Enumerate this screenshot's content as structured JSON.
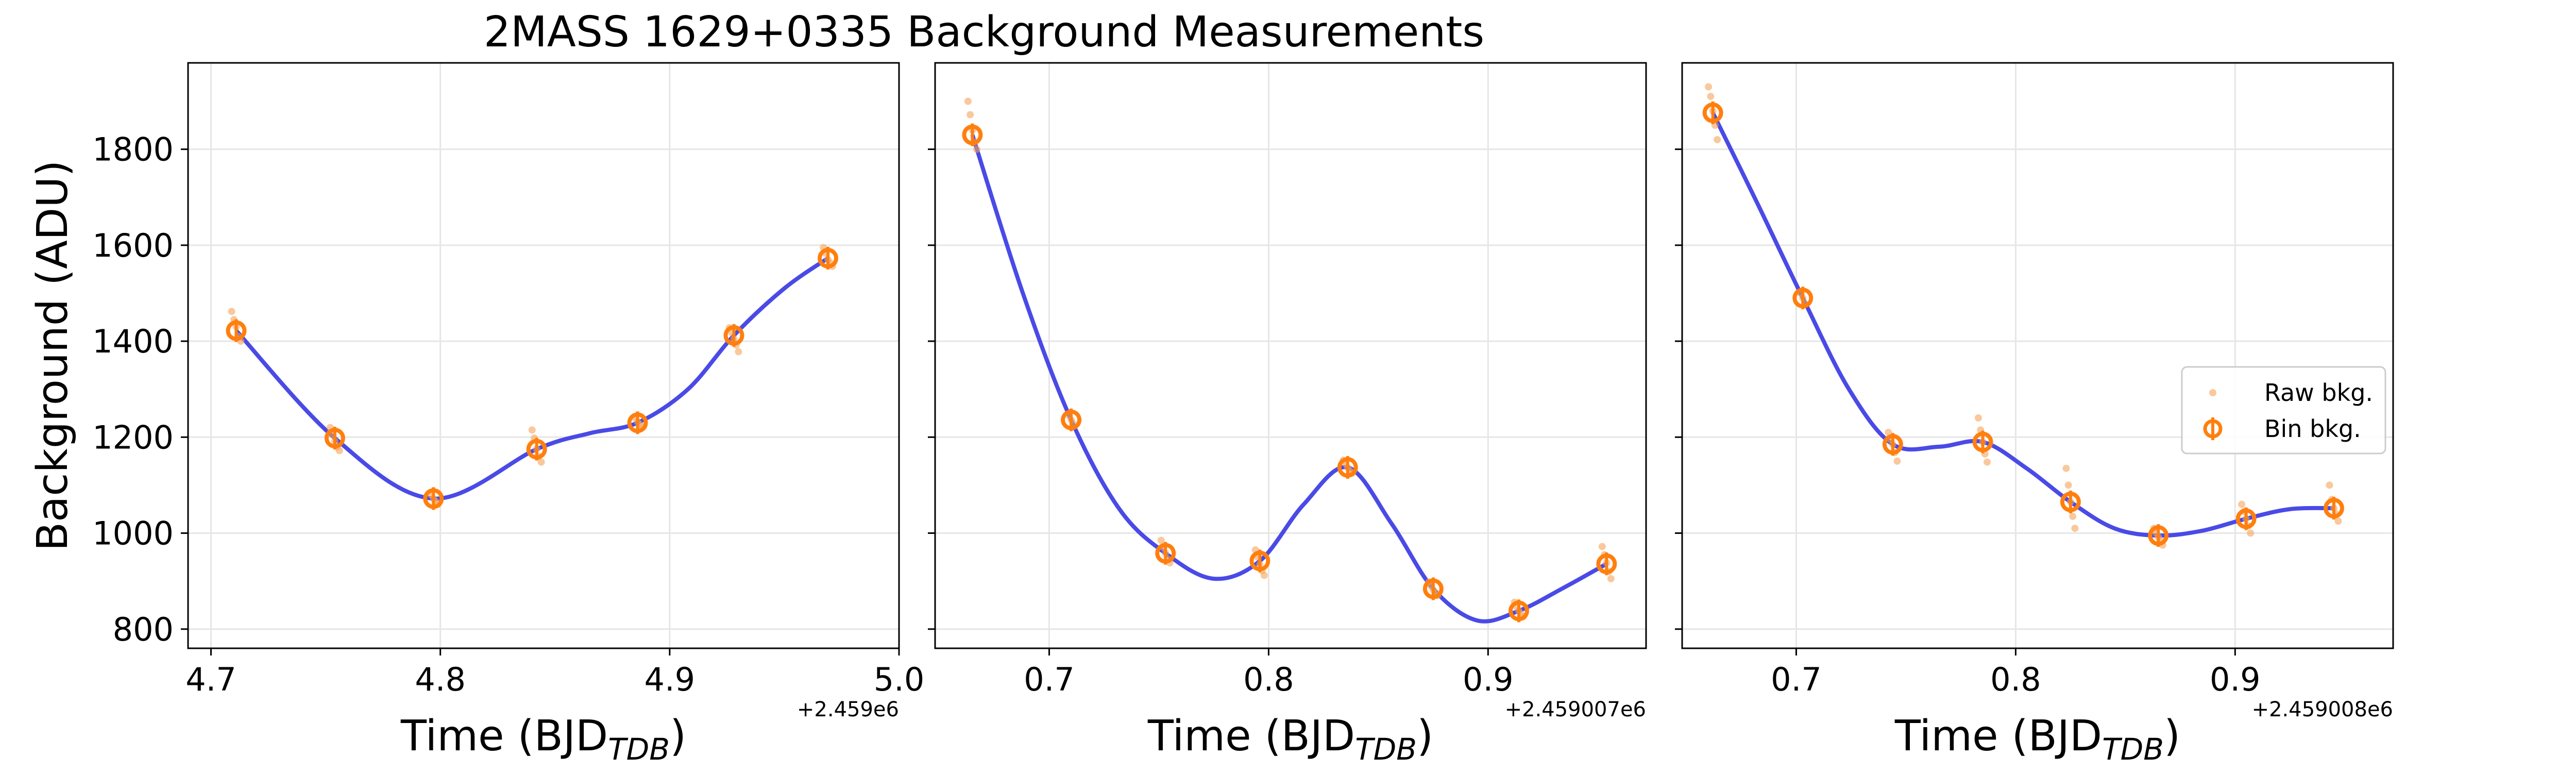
{
  "title": "2MASS 1629+0335 Background Measurements",
  "legend": {
    "placement": "center-right",
    "entries": [
      {
        "label": "Raw bkg.",
        "marker": "raw-dot"
      },
      {
        "label": "Bin bkg.",
        "marker": "bin-errorbar-circle"
      }
    ]
  },
  "colors": {
    "raw": "#f5a45a",
    "bin": "#ff7f0e",
    "fit": "#4040e6",
    "grid": "#e6e6e6",
    "axis": "#000000"
  },
  "chart_data": [
    {
      "type": "scatter",
      "xlabel": "Time (BJD",
      "xlabel_sub": "TDB",
      "xlabel_end": ")",
      "ylabel": "Background (ADU)",
      "x_offset_label": "+2.459e6",
      "xlim": [
        4.69,
        5.0
      ],
      "ylim": [
        760,
        1980
      ],
      "xticks": [
        4.7,
        4.8,
        4.9,
        5.0
      ],
      "xtick_labels": [
        "4.7",
        "4.8",
        "4.9",
        "5.0"
      ],
      "yticks": [
        800,
        1000,
        1200,
        1400,
        1600,
        1800
      ],
      "ytick_labels": [
        "800",
        "1000",
        "1200",
        "1400",
        "1600",
        "1800"
      ],
      "grid": true,
      "binned": {
        "x": [
          4.711,
          4.754,
          4.797,
          4.842,
          4.886,
          4.928,
          4.969
        ],
        "y": [
          1422,
          1198,
          1072,
          1175,
          1230,
          1412,
          1573
        ]
      },
      "raw": {
        "x": [
          4.709,
          4.71,
          4.711,
          4.712,
          4.713,
          4.752,
          4.753,
          4.754,
          4.755,
          4.756,
          4.796,
          4.797,
          4.798,
          4.799,
          4.84,
          4.841,
          4.842,
          4.843,
          4.844,
          4.885,
          4.886,
          4.887,
          4.888,
          4.926,
          4.927,
          4.928,
          4.929,
          4.93,
          4.967,
          4.968,
          4.969,
          4.97,
          4.971
        ],
        "y": [
          1462,
          1445,
          1430,
          1410,
          1400,
          1220,
          1205,
          1192,
          1180,
          1172,
          1080,
          1072,
          1066,
          1060,
          1215,
          1198,
          1175,
          1160,
          1148,
          1240,
          1232,
          1226,
          1222,
          1428,
          1418,
          1405,
          1392,
          1378,
          1595,
          1583,
          1570,
          1563,
          1556
        ]
      },
      "fit": {
        "x": [
          4.711,
          4.754,
          4.797,
          4.842,
          4.865,
          4.886,
          4.908,
          4.928,
          4.95,
          4.969
        ],
        "y": [
          1422,
          1198,
          1072,
          1175,
          1208,
          1230,
          1300,
          1412,
          1510,
          1573
        ]
      }
    },
    {
      "type": "scatter",
      "xlabel": "Time (BJD",
      "xlabel_sub": "TDB",
      "xlabel_end": ")",
      "ylabel": "",
      "x_offset_label": "+2.459007e6",
      "xlim": [
        0.648,
        0.972
      ],
      "ylim": [
        760,
        1980
      ],
      "xticks": [
        0.7,
        0.8,
        0.9
      ],
      "xtick_labels": [
        "0.7",
        "0.8",
        "0.9"
      ],
      "yticks": [
        800,
        1000,
        1200,
        1400,
        1600,
        1800
      ],
      "ytick_labels": [],
      "grid": true,
      "binned": {
        "x": [
          0.665,
          0.71,
          0.753,
          0.796,
          0.836,
          0.875,
          0.914,
          0.954
        ],
        "y": [
          1830,
          1236,
          958,
          942,
          1137,
          884,
          838,
          936
        ]
      },
      "raw": {
        "x": [
          0.663,
          0.664,
          0.665,
          0.666,
          0.667,
          0.709,
          0.71,
          0.711,
          0.751,
          0.752,
          0.753,
          0.754,
          0.755,
          0.794,
          0.795,
          0.796,
          0.797,
          0.798,
          0.834,
          0.835,
          0.836,
          0.837,
          0.838,
          0.873,
          0.874,
          0.875,
          0.876,
          0.877,
          0.912,
          0.913,
          0.914,
          0.915,
          0.916,
          0.952,
          0.953,
          0.954,
          0.955,
          0.956
        ],
        "y": [
          1900,
          1872,
          1840,
          1815,
          1800,
          1245,
          1236,
          1228,
          985,
          970,
          958,
          946,
          938,
          965,
          950,
          935,
          922,
          912,
          1152,
          1145,
          1137,
          1130,
          1125,
          898,
          890,
          882,
          876,
          870,
          856,
          847,
          838,
          832,
          826,
          972,
          955,
          938,
          920,
          905
        ]
      },
      "fit": {
        "x": [
          0.665,
          0.688,
          0.71,
          0.732,
          0.753,
          0.775,
          0.796,
          0.816,
          0.836,
          0.856,
          0.875,
          0.895,
          0.914,
          0.934,
          0.954
        ],
        "y": [
          1830,
          1500,
          1236,
          1050,
          958,
          905,
          942,
          1060,
          1137,
          1020,
          884,
          818,
          838,
          885,
          936
        ]
      }
    },
    {
      "type": "scatter",
      "xlabel": "Time (BJD",
      "xlabel_sub": "TDB",
      "xlabel_end": ")",
      "ylabel": "",
      "x_offset_label": "+2.459008e6",
      "xlim": [
        0.648,
        0.972
      ],
      "ylim": [
        760,
        1980
      ],
      "xticks": [
        0.7,
        0.8,
        0.9
      ],
      "xtick_labels": [
        "0.7",
        "0.8",
        "0.9"
      ],
      "yticks": [
        800,
        1000,
        1200,
        1400,
        1600,
        1800
      ],
      "ytick_labels": [],
      "grid": true,
      "binned": {
        "x": [
          0.662,
          0.703,
          0.744,
          0.785,
          0.825,
          0.865,
          0.905,
          0.945
        ],
        "y": [
          1876,
          1490,
          1185,
          1190,
          1065,
          995,
          1030,
          1052
        ]
      },
      "raw": {
        "x": [
          0.66,
          0.661,
          0.662,
          0.663,
          0.664,
          0.702,
          0.703,
          0.704,
          0.742,
          0.743,
          0.744,
          0.745,
          0.746,
          0.783,
          0.784,
          0.785,
          0.786,
          0.787,
          0.823,
          0.824,
          0.825,
          0.826,
          0.827,
          0.863,
          0.864,
          0.865,
          0.866,
          0.867,
          0.903,
          0.904,
          0.905,
          0.906,
          0.907,
          0.943,
          0.944,
          0.945,
          0.946,
          0.947
        ],
        "y": [
          1930,
          1910,
          1880,
          1850,
          1820,
          1500,
          1490,
          1478,
          1210,
          1195,
          1185,
          1168,
          1150,
          1240,
          1215,
          1190,
          1165,
          1148,
          1135,
          1100,
          1065,
          1035,
          1010,
          1010,
          1000,
          992,
          985,
          975,
          1060,
          1045,
          1030,
          1015,
          1000,
          1100,
          1070,
          1052,
          1040,
          1025
        ]
      },
      "fit": {
        "x": [
          0.662,
          0.682,
          0.703,
          0.724,
          0.744,
          0.765,
          0.785,
          0.805,
          0.825,
          0.845,
          0.865,
          0.885,
          0.905,
          0.925,
          0.945
        ],
        "y": [
          1876,
          1690,
          1490,
          1300,
          1185,
          1180,
          1190,
          1135,
          1065,
          1010,
          995,
          1005,
          1030,
          1050,
          1052
        ]
      }
    }
  ]
}
